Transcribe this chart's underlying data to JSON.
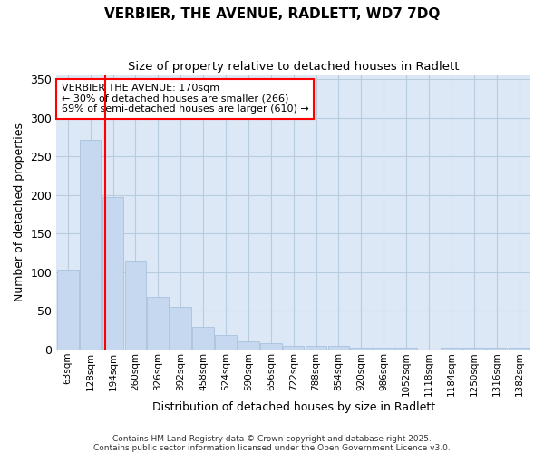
{
  "title": "VERBIER, THE AVENUE, RADLETT, WD7 7DQ",
  "subtitle": "Size of property relative to detached houses in Radlett",
  "xlabel": "Distribution of detached houses by size in Radlett",
  "ylabel": "Number of detached properties",
  "bar_color": "#c5d8f0",
  "bar_edge_color": "#a0bcd8",
  "plot_bg_color": "#dce8f5",
  "figure_bg_color": "#ffffff",
  "grid_color": "#b8cce0",
  "categories": [
    "63sqm",
    "128sqm",
    "194sqm",
    "260sqm",
    "326sqm",
    "392sqm",
    "458sqm",
    "524sqm",
    "590sqm",
    "656sqm",
    "722sqm",
    "788sqm",
    "854sqm",
    "920sqm",
    "986sqm",
    "1052sqm",
    "1118sqm",
    "1184sqm",
    "1250sqm",
    "1316sqm",
    "1382sqm"
  ],
  "values": [
    103,
    272,
    197,
    115,
    68,
    55,
    29,
    19,
    10,
    8,
    5,
    5,
    5,
    2,
    2,
    2,
    0,
    2,
    2,
    2,
    2
  ],
  "red_line_x": 1.64,
  "annotation_text": "VERBIER THE AVENUE: 170sqm\n← 30% of detached houses are smaller (266)\n69% of semi-detached houses are larger (610) →",
  "ylim": [
    0,
    355
  ],
  "yticks": [
    0,
    50,
    100,
    150,
    200,
    250,
    300,
    350
  ],
  "footnote1": "Contains HM Land Registry data © Crown copyright and database right 2025.",
  "footnote2": "Contains public sector information licensed under the Open Government Licence v3.0."
}
